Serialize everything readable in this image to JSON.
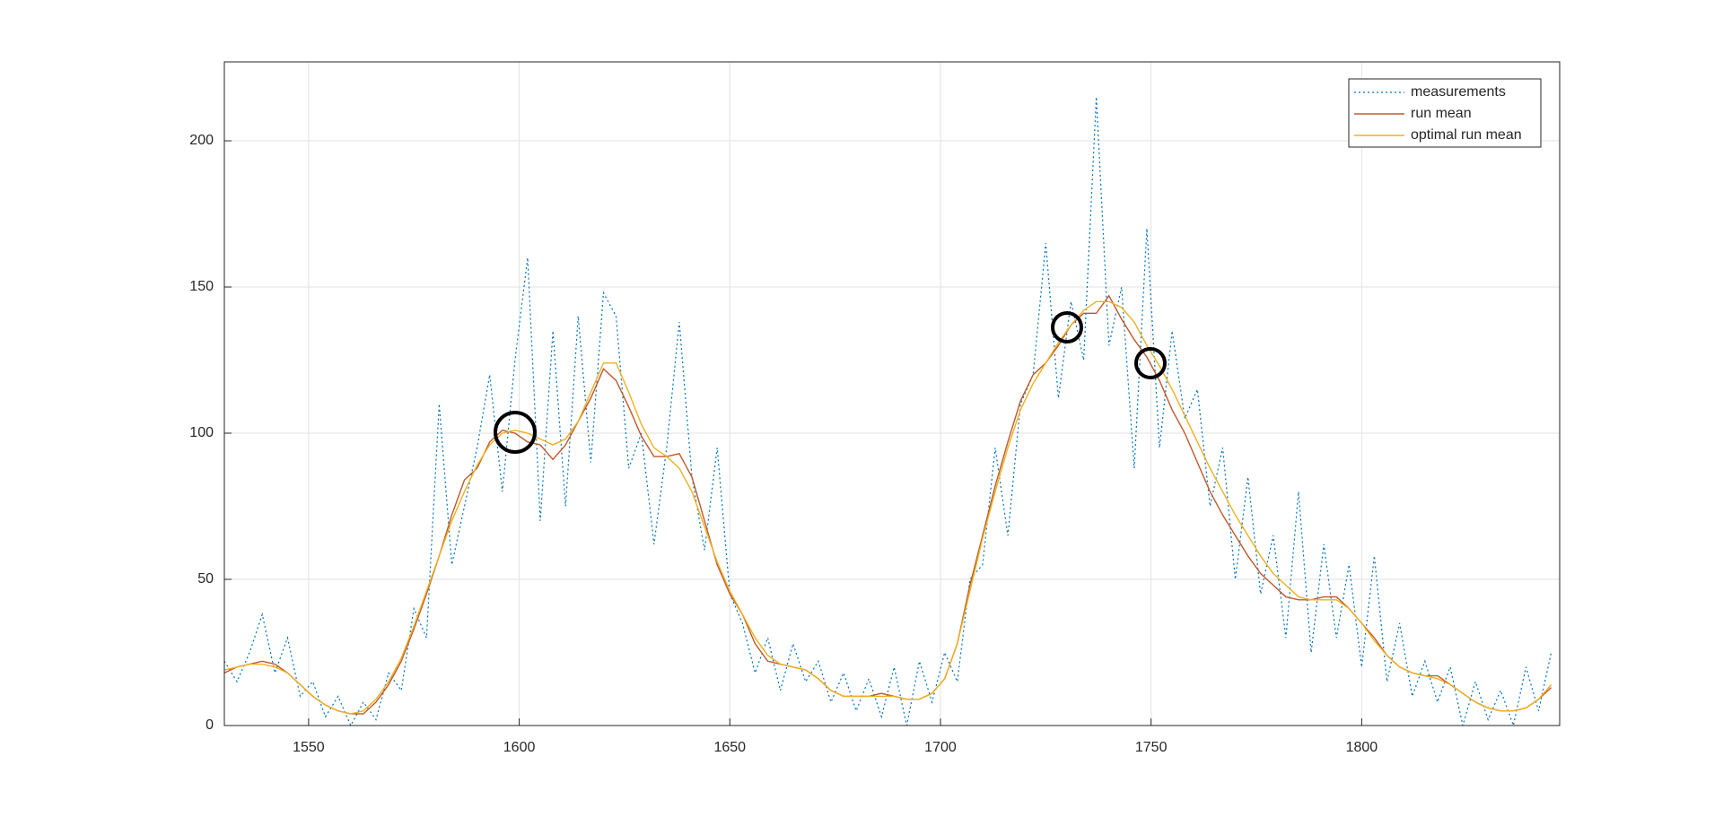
{
  "chart_data": {
    "type": "line",
    "x": [
      1530,
      1533,
      1536,
      1539,
      1542,
      1545,
      1548,
      1551,
      1554,
      1557,
      1560,
      1563,
      1566,
      1569,
      1572,
      1575,
      1578,
      1581,
      1584,
      1587,
      1590,
      1593,
      1596,
      1599,
      1602,
      1605,
      1608,
      1611,
      1614,
      1617,
      1620,
      1623,
      1626,
      1629,
      1632,
      1635,
      1638,
      1641,
      1644,
      1647,
      1650,
      1653,
      1656,
      1659,
      1662,
      1665,
      1668,
      1671,
      1674,
      1677,
      1680,
      1683,
      1686,
      1689,
      1692,
      1695,
      1698,
      1701,
      1704,
      1707,
      1710,
      1713,
      1716,
      1719,
      1722,
      1725,
      1728,
      1731,
      1734,
      1737,
      1740,
      1743,
      1746,
      1749,
      1752,
      1755,
      1758,
      1761,
      1764,
      1767,
      1770,
      1773,
      1776,
      1779,
      1782,
      1785,
      1788,
      1791,
      1794,
      1797,
      1800,
      1803,
      1806,
      1809,
      1812,
      1815,
      1818,
      1821,
      1824,
      1827,
      1830,
      1833,
      1836,
      1839,
      1842,
      1845
    ],
    "series": [
      {
        "name": "measurements",
        "color": "#0072BD",
        "values": [
          22,
          15,
          25,
          38,
          18,
          30,
          10,
          15,
          3,
          10,
          0,
          8,
          2,
          18,
          12,
          40,
          30,
          110,
          55,
          75,
          95,
          120,
          80,
          125,
          160,
          70,
          135,
          75,
          140,
          90,
          148,
          140,
          88,
          100,
          62,
          95,
          138,
          85,
          60,
          95,
          45,
          35,
          18,
          30,
          12,
          28,
          15,
          22,
          8,
          18,
          5,
          16,
          3,
          20,
          0,
          22,
          8,
          25,
          15,
          50,
          55,
          95,
          65,
          110,
          120,
          165,
          112,
          145,
          125,
          215,
          130,
          150,
          88,
          170,
          95,
          135,
          105,
          115,
          75,
          95,
          50,
          85,
          45,
          65,
          30,
          80,
          25,
          62,
          30,
          55,
          20,
          58,
          15,
          35,
          10,
          22,
          8,
          20,
          0,
          15,
          2,
          12,
          0,
          20,
          5,
          25
        ]
      },
      {
        "name": "run mean",
        "color": "#C0582B",
        "values": [
          18,
          20,
          21,
          22,
          21,
          18,
          14,
          10,
          7,
          5,
          4,
          4,
          8,
          14,
          22,
          33,
          45,
          58,
          72,
          84,
          88,
          97,
          101,
          100,
          97,
          96,
          91,
          96,
          104,
          112,
          122,
          118,
          109,
          99,
          92,
          92,
          93,
          85,
          70,
          55,
          45,
          38,
          28,
          22,
          21,
          20,
          19,
          16,
          12,
          10,
          10,
          10,
          11,
          10,
          9,
          9,
          11,
          16,
          28,
          48,
          65,
          82,
          97,
          111,
          120,
          124,
          130,
          137,
          141,
          141,
          147,
          139,
          132,
          126,
          118,
          108,
          100,
          90,
          80,
          72,
          65,
          58,
          52,
          48,
          44,
          43,
          43,
          44,
          44,
          40,
          35,
          30,
          24,
          20,
          18,
          17,
          17,
          14,
          11,
          8,
          6,
          5,
          5,
          6,
          9,
          13
        ]
      },
      {
        "name": "optimal run mean",
        "color": "#EDB120",
        "values": [
          19,
          20,
          21,
          21,
          20,
          18,
          14,
          10,
          7,
          5,
          4,
          5,
          9,
          15,
          23,
          34,
          46,
          58,
          70,
          80,
          89,
          96,
          100,
          101,
          100,
          98,
          96,
          98,
          104,
          114,
          124,
          124,
          114,
          103,
          95,
          92,
          88,
          80,
          68,
          56,
          46,
          38,
          30,
          24,
          21,
          20,
          19,
          16,
          12,
          10,
          10,
          10,
          10,
          10,
          9,
          9,
          11,
          16,
          28,
          46,
          64,
          80,
          95,
          108,
          117,
          124,
          131,
          137,
          142,
          145,
          145,
          143,
          138,
          130,
          123,
          115,
          106,
          97,
          88,
          80,
          72,
          65,
          58,
          52,
          48,
          44,
          43,
          43,
          43,
          40,
          35,
          29,
          24,
          20,
          18,
          17,
          16,
          14,
          11,
          8,
          6,
          5,
          5,
          6,
          9,
          14
        ]
      }
    ],
    "xlim": [
      1530,
      1847
    ],
    "ylim": [
      0,
      227
    ],
    "xticks": [
      1550,
      1600,
      1650,
      1700,
      1750,
      1800
    ],
    "yticks": [
      0,
      50,
      100,
      150,
      200
    ],
    "grid": true,
    "legend": "top-right"
  }
}
